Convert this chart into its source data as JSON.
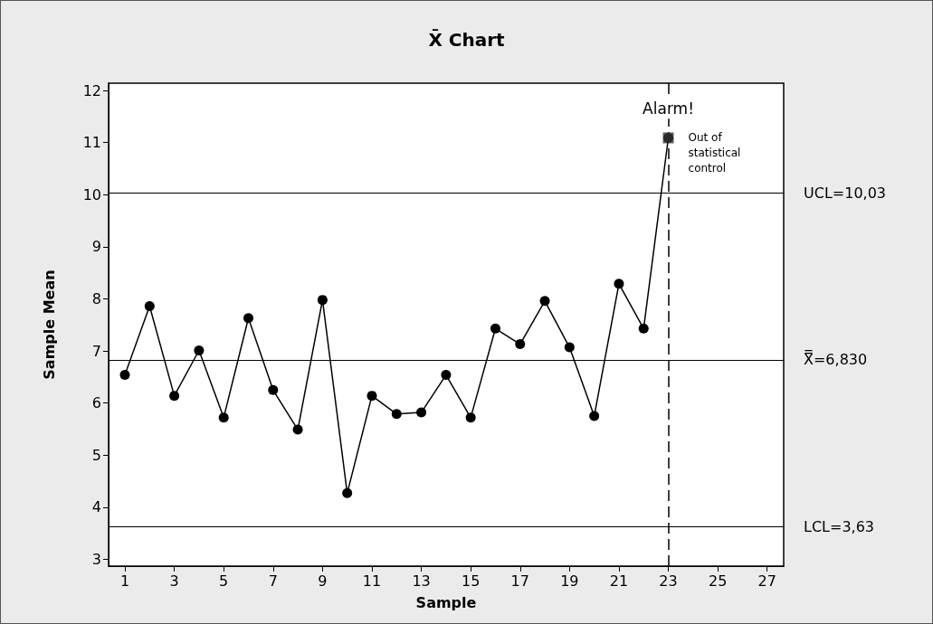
{
  "chart_data": {
    "type": "line",
    "title": "X̄ Chart",
    "xlabel": "Sample",
    "ylabel": "Sample Mean",
    "xlim": [
      0.34,
      27.67
    ],
    "xticks": [
      1,
      3,
      5,
      7,
      9,
      11,
      13,
      15,
      17,
      19,
      21,
      23,
      25,
      27
    ],
    "ylim": [
      2.87,
      12.14
    ],
    "yticks": [
      3,
      4,
      5,
      6,
      7,
      8,
      9,
      10,
      11,
      12
    ],
    "grid": false,
    "series": [
      {
        "color": "#000000",
        "marker": "circle",
        "line_style": "solid",
        "x": [
          1,
          2,
          3,
          4,
          5,
          6,
          7,
          8,
          9,
          10,
          11,
          12,
          13,
          14,
          15,
          16,
          17,
          18,
          19,
          20,
          21,
          22,
          23
        ],
        "values": [
          6.54,
          7.86,
          6.14,
          7.01,
          5.72,
          7.63,
          6.25,
          5.49,
          7.98,
          4.27,
          6.14,
          5.79,
          5.82,
          6.54,
          5.72,
          7.43,
          7.13,
          7.96,
          7.07,
          5.75,
          8.29,
          7.43,
          11.09
        ]
      },
      {
        "type": "scatter",
        "color": "#333333",
        "marker": "square",
        "x": [
          23
        ],
        "values": [
          11.09
        ]
      }
    ],
    "ref_lines": [
      {
        "axis": "y",
        "value": 10.03,
        "label": "UCL=10,03",
        "color": "#000000",
        "line_style": "solid"
      },
      {
        "axis": "y",
        "value": 6.83,
        "label": "X̿=6,830",
        "color": "#000000",
        "line_style": "solid"
      },
      {
        "axis": "y",
        "value": 3.63,
        "label": "LCL=3,63",
        "color": "#000000",
        "line_style": "solid"
      },
      {
        "axis": "x",
        "value": 23,
        "label": null,
        "color": "#000000",
        "line_style": "dashed"
      }
    ],
    "annotations": [
      {
        "text": "Alarm!",
        "x": 23,
        "y": 11.65
      },
      {
        "text": "Out of statistical control",
        "x": 23,
        "y": 11.1
      }
    ]
  }
}
